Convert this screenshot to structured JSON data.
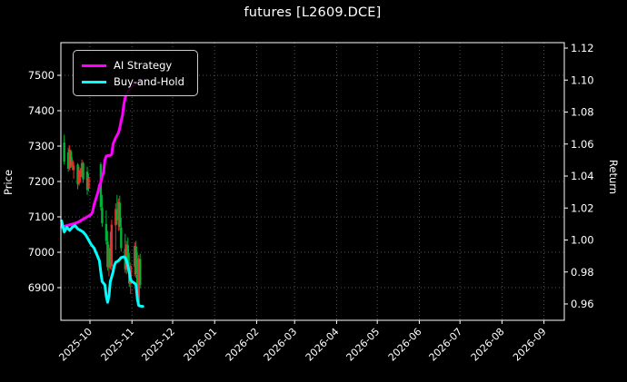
{
  "window": {
    "background": "#000000"
  },
  "title": "futures [L2609.DCE]",
  "axes": {
    "left_label": "Price",
    "right_label": "Return"
  },
  "legend": {
    "position": "upper left",
    "items": [
      {
        "label": "AI Strategy",
        "color": "#ff00ff"
      },
      {
        "label": "Buy-and-Hold",
        "color": "#00ffff"
      }
    ]
  },
  "colors": {
    "background": "#000000",
    "text": "#ffffff",
    "grid": "#555555",
    "spine": "#ffffff",
    "candle_up": "#e62e2e",
    "candle_down": "#00b437",
    "ai_strategy": "#ff00ff",
    "buy_and_hold": "#00ffff"
  },
  "chart_data": {
    "type": "mixed",
    "title": "futures [L2609.DCE]",
    "subtype": [
      "candlestick",
      "line",
      "line"
    ],
    "grid": "dotted",
    "legend_position": "upper left",
    "x_ticks": [
      "2025-10",
      "2025-11",
      "2025-12",
      "2026-01",
      "2026-02",
      "2026-03",
      "2026-04",
      "2026-05",
      "2026-06",
      "2026-07",
      "2026-08",
      "2026-09"
    ],
    "price_axis": {
      "label": "Price",
      "ticks": [
        6900,
        7000,
        7100,
        7200,
        7300,
        7400,
        7500
      ],
      "ylim": [
        6808,
        7592
      ]
    },
    "return_axis": {
      "label": "Return",
      "ticks": [
        0.96,
        0.98,
        1.0,
        1.02,
        1.04,
        1.06,
        1.08,
        1.1,
        1.12
      ],
      "ylim": [
        0.95,
        1.123
      ]
    },
    "x_range": [
      "2025-09-09",
      "2026-09-16"
    ],
    "candles_note": "columns: date, open, high, low, close (price axis)",
    "candles": [
      [
        "2025-09-12",
        7310,
        7332,
        7248,
        7256
      ],
      [
        "2025-09-15",
        7282,
        7296,
        7228,
        7236
      ],
      [
        "2025-09-16",
        7238,
        7302,
        7232,
        7290
      ],
      [
        "2025-09-17",
        7285,
        7290,
        7238,
        7246
      ],
      [
        "2025-09-18",
        7242,
        7268,
        7232,
        7260
      ],
      [
        "2025-09-19",
        7232,
        7255,
        7208,
        7245
      ],
      [
        "2025-09-22",
        7248,
        7252,
        7178,
        7192
      ],
      [
        "2025-09-23",
        7194,
        7242,
        7188,
        7232
      ],
      [
        "2025-09-24",
        7212,
        7238,
        7198,
        7228
      ],
      [
        "2025-09-25",
        7222,
        7262,
        7212,
        7252
      ],
      [
        "2025-09-26",
        7252,
        7256,
        7196,
        7206
      ],
      [
        "2025-09-29",
        7228,
        7242,
        7162,
        7176
      ],
      [
        "2025-09-30",
        7180,
        7222,
        7172,
        7212
      ],
      [
        "2025-10-09",
        7248,
        7254,
        7118,
        7128
      ],
      [
        "2025-10-10",
        7126,
        7162,
        7072,
        7082
      ],
      [
        "2025-10-13",
        7080,
        7118,
        7022,
        7032
      ],
      [
        "2025-10-14",
        7030,
        7060,
        6948,
        6958
      ],
      [
        "2025-10-15",
        6956,
        7022,
        6932,
        7012
      ],
      [
        "2025-10-16",
        7010,
        7058,
        6952,
        6962
      ],
      [
        "2025-10-17",
        6960,
        7092,
        6950,
        7078
      ],
      [
        "2025-10-20",
        7076,
        7138,
        7006,
        7122
      ],
      [
        "2025-10-21",
        7120,
        7162,
        7078,
        7092
      ],
      [
        "2025-10-22",
        7090,
        7152,
        7060,
        7142
      ],
      [
        "2025-10-23",
        7140,
        7160,
        7062,
        7072
      ],
      [
        "2025-10-24",
        7070,
        7098,
        7002,
        7012
      ],
      [
        "2025-10-27",
        7010,
        7052,
        6942,
        6952
      ],
      [
        "2025-10-28",
        6950,
        7032,
        6938,
        7022
      ],
      [
        "2025-10-29",
        7020,
        7042,
        6942,
        6952
      ],
      [
        "2025-10-30",
        6950,
        6998,
        6902,
        6912
      ],
      [
        "2025-10-31",
        6910,
        6972,
        6882,
        6962
      ],
      [
        "2025-11-03",
        6960,
        7028,
        6932,
        7018
      ],
      [
        "2025-11-04",
        7016,
        7032,
        6928,
        6938
      ],
      [
        "2025-11-05",
        6936,
        6998,
        6852,
        6862
      ],
      [
        "2025-11-06",
        6860,
        6992,
        6850,
        6982
      ],
      [
        "2025-11-07",
        6980,
        6996,
        6898,
        6908
      ]
    ],
    "series": [
      {
        "name": "AI Strategy",
        "axis": "return",
        "color": "#ff00ff",
        "points": [
          [
            "2025-09-10",
            1.008
          ],
          [
            "2025-09-14",
            1.009
          ],
          [
            "2025-09-18",
            1.01
          ],
          [
            "2025-09-22",
            1.011
          ],
          [
            "2025-09-26",
            1.013
          ],
          [
            "2025-09-30",
            1.015
          ],
          [
            "2025-10-02",
            1.016
          ],
          [
            "2025-10-03",
            1.018
          ],
          [
            "2025-10-04",
            1.022
          ],
          [
            "2025-10-06",
            1.0275
          ],
          [
            "2025-10-07",
            1.03
          ],
          [
            "2025-10-08",
            1.034
          ],
          [
            "2025-10-09",
            1.036
          ],
          [
            "2025-10-10",
            1.04
          ],
          [
            "2025-10-11",
            1.042
          ],
          [
            "2025-10-12",
            1.05
          ],
          [
            "2025-10-13",
            1.0525
          ],
          [
            "2025-10-16",
            1.053
          ],
          [
            "2025-10-17",
            1.0535
          ],
          [
            "2025-10-18",
            1.06
          ],
          [
            "2025-10-20",
            1.064
          ],
          [
            "2025-10-21",
            1.0655
          ],
          [
            "2025-10-22",
            1.067
          ],
          [
            "2025-10-23",
            1.07
          ],
          [
            "2025-10-24",
            1.0745
          ],
          [
            "2025-10-25",
            1.078
          ],
          [
            "2025-10-26",
            1.085
          ],
          [
            "2025-10-27",
            1.089
          ],
          [
            "2025-10-28",
            1.0915
          ],
          [
            "2025-10-30",
            1.094
          ],
          [
            "2025-11-01",
            1.096
          ],
          [
            "2025-11-04",
            1.098
          ],
          [
            "2025-11-06",
            1.099
          ],
          [
            "2025-11-09",
            1.1
          ]
        ]
      },
      {
        "name": "Buy-and-Hold",
        "axis": "return",
        "color": "#00ffff",
        "points": [
          [
            "2025-09-10",
            1.012
          ],
          [
            "2025-09-12",
            1.005
          ],
          [
            "2025-09-14",
            1.008
          ],
          [
            "2025-09-16",
            1.006
          ],
          [
            "2025-09-18",
            1.008
          ],
          [
            "2025-09-20",
            1.009
          ],
          [
            "2025-09-22",
            1.007
          ],
          [
            "2025-09-24",
            1.006
          ],
          [
            "2025-09-26",
            1.005
          ],
          [
            "2025-09-28",
            1.003
          ],
          [
            "2025-09-30",
            1.0
          ],
          [
            "2025-10-02",
            0.997
          ],
          [
            "2025-10-04",
            0.995
          ],
          [
            "2025-10-06",
            0.991
          ],
          [
            "2025-10-08",
            0.987
          ],
          [
            "2025-10-09",
            0.98
          ],
          [
            "2025-10-10",
            0.974
          ],
          [
            "2025-10-12",
            0.972
          ],
          [
            "2025-10-13",
            0.965
          ],
          [
            "2025-10-14",
            0.961
          ],
          [
            "2025-10-15",
            0.965
          ],
          [
            "2025-10-16",
            0.974
          ],
          [
            "2025-10-18",
            0.98
          ],
          [
            "2025-10-19",
            0.984
          ],
          [
            "2025-10-20",
            0.986
          ],
          [
            "2025-10-22",
            0.987
          ],
          [
            "2025-10-23",
            0.988
          ],
          [
            "2025-10-24",
            0.989
          ],
          [
            "2025-10-26",
            0.9895
          ],
          [
            "2025-10-27",
            0.989
          ],
          [
            "2025-10-28",
            0.987
          ],
          [
            "2025-10-30",
            0.98
          ],
          [
            "2025-10-31",
            0.975
          ],
          [
            "2025-11-01",
            0.974
          ],
          [
            "2025-11-03",
            0.973
          ],
          [
            "2025-11-04",
            0.972
          ],
          [
            "2025-11-05",
            0.963
          ],
          [
            "2025-11-06",
            0.959
          ],
          [
            "2025-11-08",
            0.9585
          ],
          [
            "2025-11-09",
            0.9585
          ]
        ]
      }
    ]
  }
}
